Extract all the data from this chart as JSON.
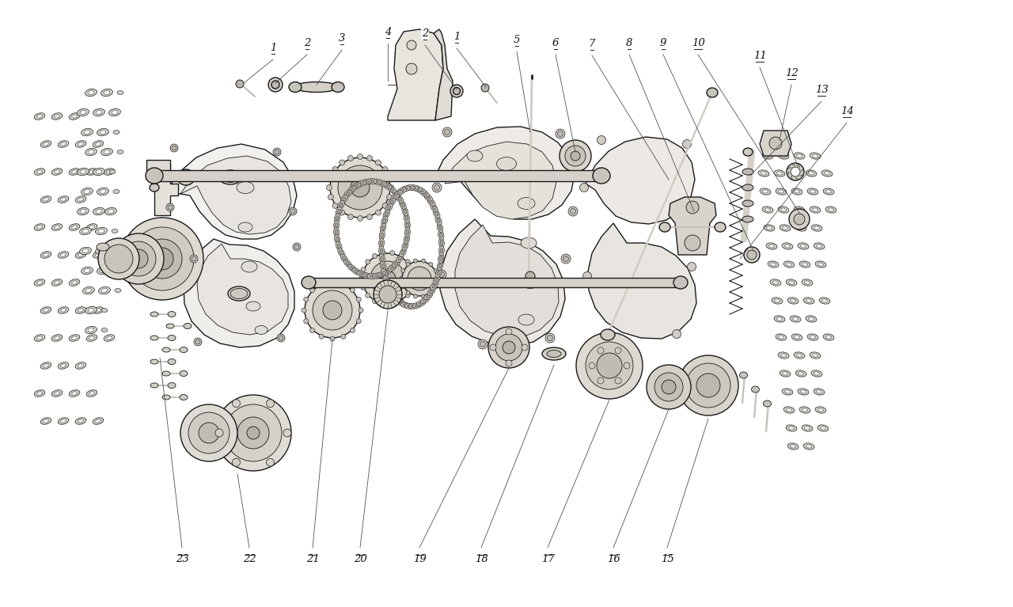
{
  "bg_color": "#ffffff",
  "line_color": "#1a1a1a",
  "label_color": "#111111",
  "fig_width": 12.8,
  "fig_height": 7.67,
  "dpi": 100
}
